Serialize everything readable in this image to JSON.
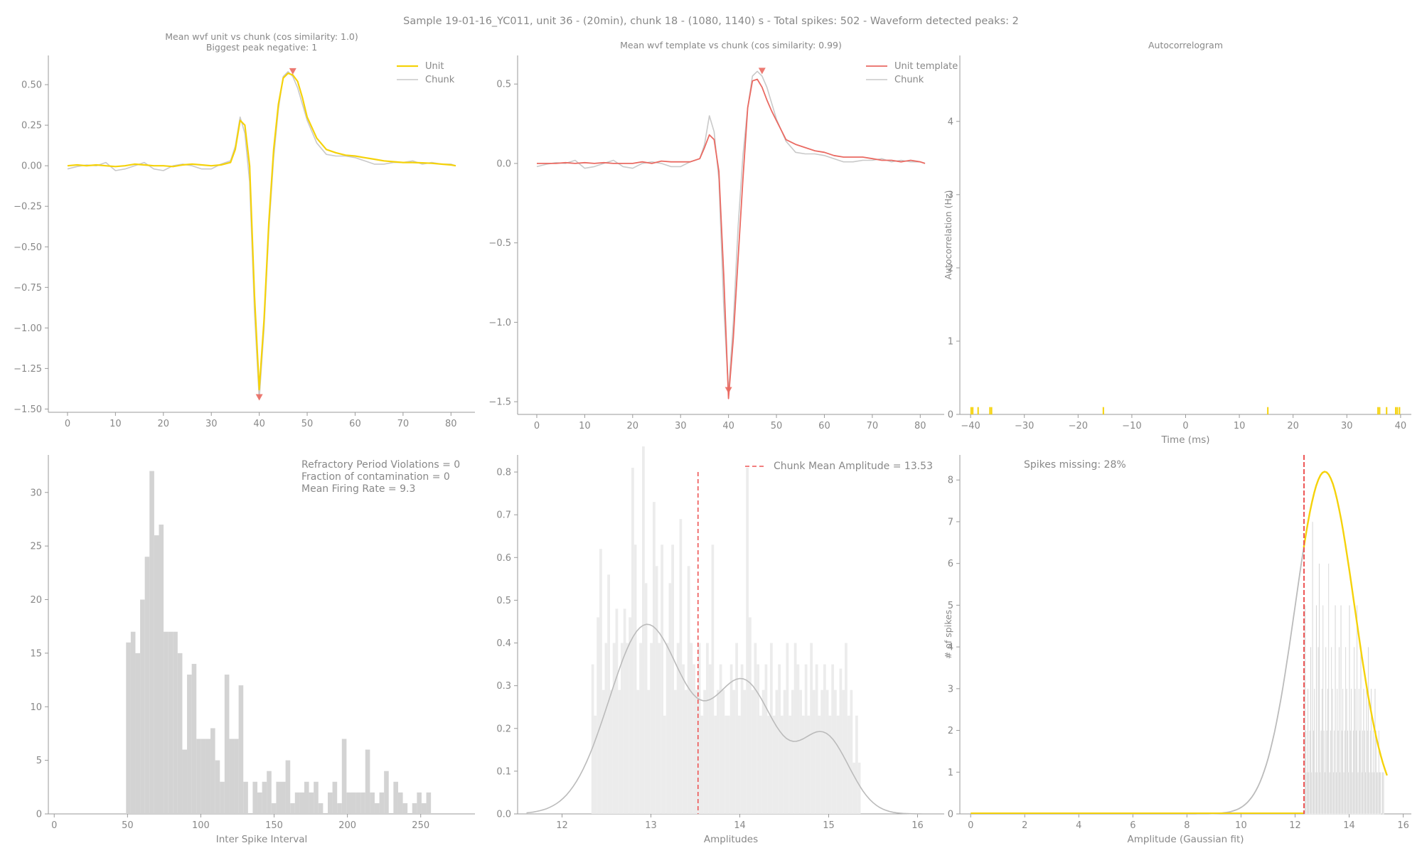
{
  "suptitle": "Sample 19-01-16_YC011, unit 36 - (20min), chunk 18 - (1080, 1140) s - Total spikes: 502 - Waveform detected peaks: 2",
  "colors": {
    "axis": "#9a9a9a",
    "text": "#888888",
    "unit": "#f5d20a",
    "chunk": "#c9c9c9",
    "template": "#ea6a62",
    "hist": "#d3d3d3",
    "amphist": "#ececec",
    "red": "#ee5555",
    "gold": "#f5d20a",
    "gray_curve": "#bbbbbb"
  },
  "chart_data": [
    {
      "id": "p1",
      "type": "line",
      "title": [
        "Mean wvf unit vs chunk (cos similarity: 1.0)",
        "Biggest peak negative: 1"
      ],
      "xlabel": "",
      "ylabel": "",
      "xlim": [
        -4,
        85
      ],
      "ylim": [
        -1.52,
        0.68
      ],
      "xticks": [
        0,
        10,
        20,
        30,
        40,
        50,
        60,
        70,
        80
      ],
      "yticks": [
        0.5,
        0.25,
        0.0,
        -0.25,
        -0.5,
        -0.75,
        -1.0,
        -1.25,
        -1.5
      ],
      "yticklabels": [
        "0.50",
        "0.25",
        "0.00",
        "−0.25",
        "−0.50",
        "−0.75",
        "−1.00",
        "−1.25",
        "−1.50"
      ],
      "legend": {
        "position": "top-right",
        "entries": [
          "Unit",
          "Chunk"
        ]
      },
      "peak_markers": [
        {
          "x": 47,
          "y": 0.58,
          "dir": "down"
        },
        {
          "x": 40,
          "y": -1.43,
          "dir": "down"
        }
      ],
      "series": [
        {
          "name": "Unit",
          "color": "unit",
          "width": 2.2,
          "x": [
            0,
            2,
            4,
            6,
            8,
            10,
            12,
            14,
            16,
            18,
            20,
            22,
            24,
            26,
            28,
            30,
            32,
            34,
            35,
            36,
            37,
            38,
            39,
            40,
            41,
            42,
            43,
            44,
            45,
            46,
            47,
            48,
            49,
            50,
            52,
            54,
            56,
            58,
            60,
            62,
            64,
            66,
            68,
            70,
            72,
            74,
            76,
            78,
            80,
            81
          ],
          "y": [
            0.0,
            0.005,
            0.0,
            0.005,
            0.0,
            -0.005,
            0.0,
            0.01,
            0.005,
            0.0,
            0.0,
            -0.005,
            0.005,
            0.01,
            0.005,
            0.0,
            0.005,
            0.02,
            0.1,
            0.28,
            0.25,
            0.0,
            -0.8,
            -1.38,
            -0.95,
            -0.35,
            0.1,
            0.38,
            0.54,
            0.57,
            0.56,
            0.52,
            0.42,
            0.3,
            0.17,
            0.1,
            0.08,
            0.065,
            0.06,
            0.05,
            0.04,
            0.03,
            0.025,
            0.02,
            0.02,
            0.018,
            0.015,
            0.01,
            0.005,
            0.0
          ]
        },
        {
          "name": "Chunk",
          "color": "chunk",
          "width": 1.6,
          "x": [
            0,
            2,
            4,
            6,
            8,
            10,
            12,
            14,
            16,
            18,
            20,
            22,
            24,
            26,
            28,
            30,
            32,
            34,
            35,
            36,
            37,
            38,
            39,
            40,
            41,
            42,
            43,
            44,
            45,
            46,
            47,
            48,
            49,
            50,
            52,
            54,
            56,
            58,
            60,
            62,
            64,
            66,
            68,
            70,
            72,
            74,
            76,
            78,
            80,
            81
          ],
          "y": [
            -0.02,
            -0.005,
            0.005,
            0.0,
            0.02,
            -0.03,
            -0.02,
            0.0,
            0.02,
            -0.02,
            -0.03,
            0.0,
            0.01,
            0.0,
            -0.02,
            -0.02,
            0.01,
            0.03,
            0.12,
            0.3,
            0.2,
            -0.1,
            -0.9,
            -1.44,
            -1.0,
            -0.4,
            0.05,
            0.35,
            0.55,
            0.58,
            0.55,
            0.48,
            0.38,
            0.28,
            0.14,
            0.07,
            0.06,
            0.06,
            0.05,
            0.03,
            0.01,
            0.01,
            0.02,
            0.02,
            0.03,
            0.01,
            0.02,
            0.01,
            0.01,
            0.0
          ]
        }
      ]
    },
    {
      "id": "p2",
      "type": "line",
      "title": [
        "Mean wvf template vs chunk (cos similarity: 0.99)"
      ],
      "xlabel": "",
      "ylabel": "",
      "xlim": [
        -4,
        85
      ],
      "ylim": [
        -1.58,
        0.68
      ],
      "xticks": [
        0,
        10,
        20,
        30,
        40,
        50,
        60,
        70,
        80
      ],
      "yticks": [
        0.5,
        0.0,
        -0.5,
        -1.0,
        -1.5
      ],
      "yticklabels": [
        "0.5",
        "0.0",
        "−0.5",
        "−1.0",
        "−1.5"
      ],
      "legend": {
        "position": "top-right",
        "entries": [
          "Unit template",
          "Chunk"
        ]
      },
      "peak_markers": [
        {
          "x": 47,
          "y": 0.58,
          "dir": "down"
        },
        {
          "x": 40,
          "y": -1.43,
          "dir": "down"
        }
      ],
      "series": [
        {
          "name": "Unit template",
          "color": "template",
          "width": 1.8,
          "x": [
            0,
            2,
            4,
            6,
            8,
            10,
            12,
            14,
            16,
            18,
            20,
            22,
            24,
            26,
            28,
            30,
            32,
            34,
            35,
            36,
            37,
            38,
            39,
            40,
            41,
            42,
            43,
            44,
            45,
            46,
            47,
            48,
            49,
            50,
            52,
            54,
            56,
            58,
            60,
            62,
            64,
            66,
            68,
            70,
            72,
            74,
            76,
            78,
            80,
            81
          ],
          "y": [
            0.0,
            0.0,
            0.0,
            0.005,
            0.0,
            0.005,
            0.0,
            0.005,
            0.0,
            0.0,
            0.0,
            0.01,
            0.0,
            0.015,
            0.01,
            0.01,
            0.01,
            0.03,
            0.1,
            0.18,
            0.15,
            -0.05,
            -0.7,
            -1.48,
            -1.1,
            -0.6,
            -0.1,
            0.35,
            0.52,
            0.53,
            0.48,
            0.4,
            0.33,
            0.27,
            0.15,
            0.12,
            0.1,
            0.08,
            0.07,
            0.05,
            0.04,
            0.04,
            0.04,
            0.03,
            0.02,
            0.02,
            0.01,
            0.02,
            0.01,
            0.0
          ]
        },
        {
          "name": "Chunk",
          "color": "chunk",
          "width": 1.6,
          "x": [
            0,
            2,
            4,
            6,
            8,
            10,
            12,
            14,
            16,
            18,
            20,
            22,
            24,
            26,
            28,
            30,
            32,
            34,
            35,
            36,
            37,
            38,
            39,
            40,
            41,
            42,
            43,
            44,
            45,
            46,
            47,
            48,
            49,
            50,
            52,
            54,
            56,
            58,
            60,
            62,
            64,
            66,
            68,
            70,
            72,
            74,
            76,
            78,
            80,
            81
          ],
          "y": [
            -0.02,
            -0.005,
            0.005,
            0.0,
            0.02,
            -0.03,
            -0.02,
            0.0,
            0.02,
            -0.02,
            -0.03,
            0.0,
            0.01,
            0.0,
            -0.02,
            -0.02,
            0.01,
            0.03,
            0.12,
            0.3,
            0.2,
            -0.1,
            -0.9,
            -1.44,
            -1.0,
            -0.4,
            0.05,
            0.35,
            0.55,
            0.58,
            0.55,
            0.48,
            0.38,
            0.28,
            0.14,
            0.07,
            0.06,
            0.06,
            0.05,
            0.03,
            0.01,
            0.01,
            0.02,
            0.02,
            0.03,
            0.01,
            0.02,
            0.01,
            0.01,
            0.0
          ]
        }
      ]
    },
    {
      "id": "p3",
      "type": "bar",
      "title": [
        "Autocorrelogram"
      ],
      "xlabel": "Time (ms)",
      "ylabel": "Autocorrelation (Hz)",
      "xlim": [
        -42,
        42
      ],
      "ylim": [
        0,
        4.9
      ],
      "xticks": [
        -40,
        -30,
        -20,
        -10,
        0,
        10,
        20,
        30,
        40
      ],
      "xticklabels": [
        "−40",
        "−30",
        "−20",
        "−10",
        "0",
        "10",
        "20",
        "30",
        "40"
      ],
      "yticks": [
        0,
        1,
        2,
        3,
        4
      ],
      "bars_x": [
        -39.9,
        -39.6,
        -38.6,
        -36.4,
        -36.1,
        -15.3,
        15.3,
        35.8,
        36.1,
        37.4,
        39.1,
        39.4,
        39.8
      ],
      "bar_height": 0.1
    },
    {
      "id": "p4",
      "type": "bar",
      "title": [
        ""
      ],
      "xlabel": "Inter Spike Interval",
      "ylabel": "",
      "xlim": [
        -4,
        287
      ],
      "ylim": [
        0,
        33.5
      ],
      "xticks": [
        0,
        50,
        100,
        150,
        200,
        250
      ],
      "yticks": [
        0,
        5,
        10,
        15,
        20,
        25,
        30
      ],
      "annotations": [
        "Refractory Period Violations = 0",
        "Fraction of contamination = 0",
        "Mean Firing Rate = 9.3"
      ],
      "bin_start": 49,
      "bin_width": 3.2,
      "values": [
        16,
        17,
        15,
        20,
        24,
        32,
        26,
        27,
        17,
        17,
        17,
        15,
        6,
        13,
        14,
        7,
        7,
        7,
        8,
        5,
        3,
        13,
        7,
        7,
        12,
        3,
        0,
        3,
        2,
        3,
        4,
        1,
        3,
        3,
        5,
        1,
        2,
        2,
        3,
        2,
        3,
        1,
        0,
        2,
        3,
        1,
        7,
        2,
        2,
        2,
        2,
        6,
        2,
        1,
        2,
        4,
        0,
        3,
        2,
        1,
        0,
        1,
        2,
        1,
        2
      ]
    },
    {
      "id": "p5",
      "type": "bar",
      "title": [
        ""
      ],
      "xlabel": "Amplitudes",
      "ylabel": "",
      "xlim": [
        11.5,
        16.3
      ],
      "ylim": [
        0,
        0.84
      ],
      "xticks": [
        12,
        13,
        14,
        15,
        16
      ],
      "yticks": [
        0.0,
        0.1,
        0.2,
        0.3,
        0.4,
        0.5,
        0.6,
        0.7,
        0.8
      ],
      "yticklabels": [
        "0.0",
        "0.1",
        "0.2",
        "0.3",
        "0.4",
        "0.5",
        "0.6",
        "0.7",
        "0.8"
      ],
      "legend": {
        "position": "top-right",
        "entries": [
          "Chunk Mean Amplitude = 13.53"
        ]
      },
      "mean_line": 13.53,
      "bin_start": 12.33,
      "bin_width": 0.03,
      "values": [
        0.35,
        0.23,
        0.46,
        0.62,
        0.29,
        0.4,
        0.56,
        0.29,
        0.4,
        0.48,
        0.29,
        0.4,
        0.48,
        0.4,
        0.46,
        0.81,
        0.63,
        0.29,
        0.4,
        0.86,
        0.54,
        0.29,
        0.4,
        0.73,
        0.58,
        0.4,
        0.63,
        0.23,
        0.4,
        0.54,
        0.63,
        0.29,
        0.4,
        0.69,
        0.35,
        0.29,
        0.58,
        0.4,
        0.35,
        0.29,
        0.4,
        0.23,
        0.29,
        0.4,
        0.35,
        0.63,
        0.23,
        0.29,
        0.35,
        0.29,
        0.23,
        0.23,
        0.35,
        0.29,
        0.4,
        0.23,
        0.35,
        0.29,
        0.81,
        0.46,
        0.29,
        0.4,
        0.35,
        0.23,
        0.29,
        0.35,
        0.23,
        0.4,
        0.23,
        0.29,
        0.35,
        0.23,
        0.29,
        0.4,
        0.23,
        0.29,
        0.4,
        0.35,
        0.29,
        0.23,
        0.35,
        0.23,
        0.4,
        0.29,
        0.35,
        0.23,
        0.29,
        0.35,
        0.29,
        0.23,
        0.35,
        0.29,
        0.23,
        0.34,
        0.29,
        0.4,
        0.23,
        0.29,
        0.12,
        0.23,
        0.12
      ]
    },
    {
      "id": "p6",
      "type": "bar",
      "title": [
        ""
      ],
      "xlabel": "Amplitude (Gaussian fit)",
      "ylabel": "# of spikes",
      "xlim": [
        -0.4,
        16.3
      ],
      "ylim": [
        0,
        8.6
      ],
      "xticks": [
        0,
        2,
        4,
        6,
        8,
        10,
        12,
        14,
        16
      ],
      "yticks": [
        0,
        1,
        2,
        3,
        4,
        5,
        6,
        7,
        8
      ],
      "annotations": [
        "Spikes missing: 28%"
      ],
      "cutoff_line": 12.33,
      "bin_start": 12.35,
      "bin_width": 0.035,
      "values": [
        5,
        2,
        1,
        3,
        1,
        2,
        4,
        1,
        7,
        2,
        3,
        1,
        5,
        1,
        4,
        6,
        1,
        2,
        3,
        5,
        2,
        1,
        4,
        2,
        3,
        6,
        1,
        2,
        4,
        3,
        1,
        2,
        5,
        1,
        3,
        2,
        4,
        1,
        5,
        2,
        3,
        1,
        2,
        4,
        3,
        2,
        1,
        5,
        2,
        3,
        1,
        2,
        4,
        3,
        2,
        5,
        1,
        3,
        2,
        4,
        1,
        2,
        3,
        2,
        1,
        3,
        2,
        4,
        1,
        2,
        3,
        1,
        2,
        1,
        3,
        2,
        1,
        1,
        2,
        1,
        1,
        0,
        1,
        1
      ]
    }
  ]
}
